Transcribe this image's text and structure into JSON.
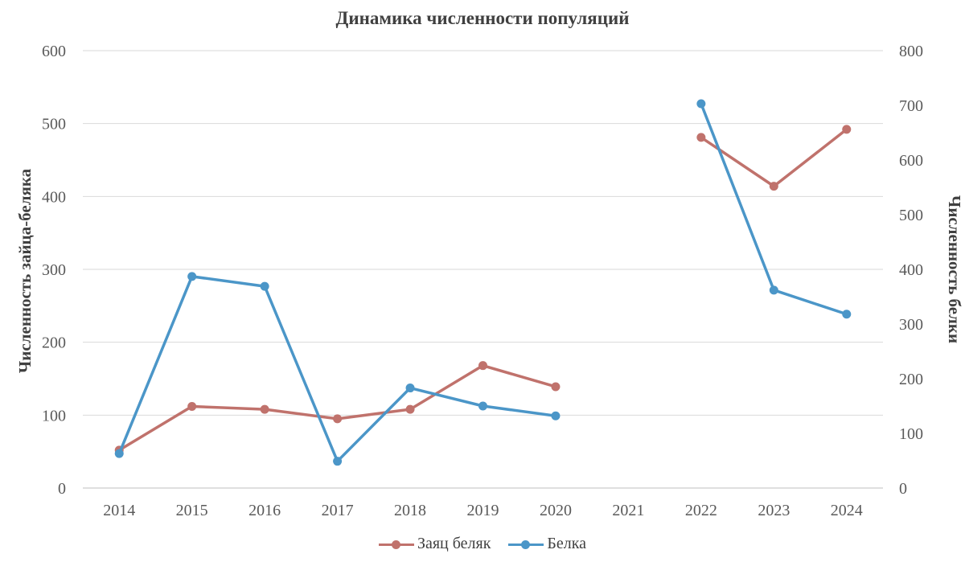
{
  "chart_data": {
    "type": "line",
    "title": "Динамика численности популяций",
    "categories": [
      "2014",
      "2015",
      "2016",
      "2017",
      "2018",
      "2019",
      "2020",
      "2021",
      "2022",
      "2023",
      "2024"
    ],
    "y_left": {
      "label": "Численность зайца-беляка",
      "ylim": [
        0,
        600
      ],
      "ticks": [
        0,
        100,
        200,
        300,
        400,
        500,
        600
      ]
    },
    "y_right": {
      "label": "Численность белки",
      "ylim": [
        0,
        800
      ],
      "ticks": [
        0,
        100,
        200,
        300,
        400,
        500,
        600,
        700,
        800
      ]
    },
    "grid": true,
    "legend_position": "bottom",
    "series": [
      {
        "name": "Заяц беляк",
        "axis": "left",
        "color": "#c0726c",
        "values": [
          52,
          112,
          108,
          95,
          108,
          168,
          139,
          null,
          481,
          414,
          492
        ]
      },
      {
        "name": "Белка",
        "axis": "right",
        "color": "#4b96c8",
        "values": [
          63,
          387,
          369,
          49,
          183,
          150,
          132,
          null,
          703,
          362,
          318
        ]
      }
    ]
  }
}
